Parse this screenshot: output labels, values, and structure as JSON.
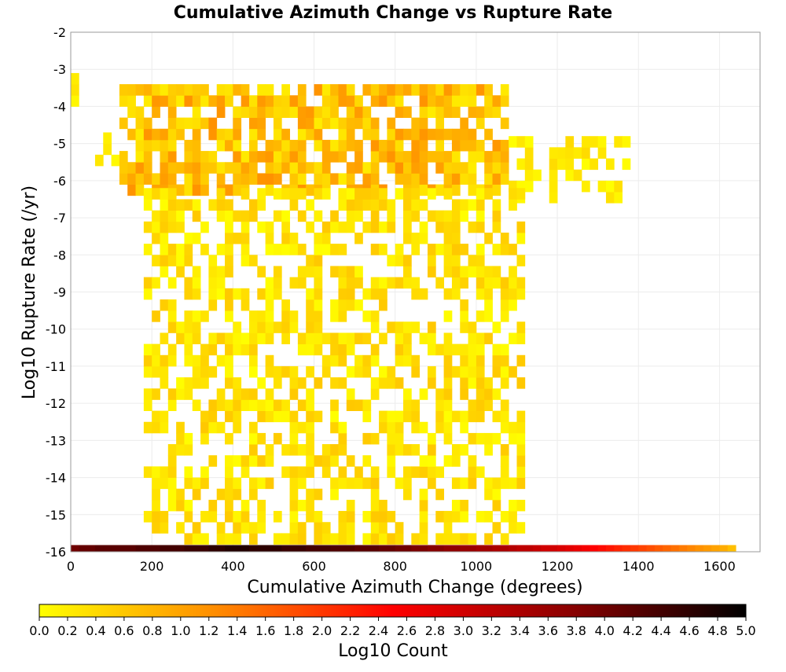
{
  "chart_data": {
    "type": "heatmap",
    "title": "Cumulative Azimuth Change vs Rupture Rate",
    "xlabel": "Cumulative Azimuth Change (degrees)",
    "ylabel": "Log10 Rupture Rate (/yr)",
    "xlim": [
      0,
      1700
    ],
    "ylim": [
      -16,
      -2
    ],
    "x_ticks": [
      "0",
      "200",
      "400",
      "600",
      "800",
      "1000",
      "1200",
      "1400",
      "1600"
    ],
    "y_ticks": [
      "-2",
      "-3",
      "-4",
      "-5",
      "-6",
      "-7",
      "-8",
      "-9",
      "-10",
      "-11",
      "-12",
      "-13",
      "-14",
      "-15",
      "-16"
    ],
    "grid": true,
    "bin_width_x": 20,
    "bin_height_y": 0.3,
    "colorbar": {
      "label": "Log10 Count",
      "min": 0.0,
      "max": 5.0,
      "ticks": [
        "0.0",
        "0.2",
        "0.4",
        "0.6",
        "0.8",
        "1.0",
        "1.2",
        "1.4",
        "1.6",
        "1.8",
        "2.0",
        "2.2",
        "2.4",
        "2.6",
        "2.8",
        "3.0",
        "3.2",
        "3.4",
        "3.6",
        "3.8",
        "4.0",
        "4.2",
        "4.4",
        "4.6",
        "4.8",
        "5.0"
      ],
      "colors": [
        "#ffff00",
        "#ff8c00",
        "#ff0000",
        "#8b0000",
        "#000000"
      ]
    },
    "bottom_row": {
      "y": -16,
      "x_start": 0,
      "x_end": 1640,
      "values": [
        4.0,
        4.1,
        4.1,
        4.2,
        4.2,
        4.2,
        4.2,
        4.2,
        4.3,
        4.3,
        4.3,
        4.4,
        4.4,
        4.4,
        4.5,
        4.5,
        4.5,
        4.6,
        4.6,
        4.7,
        4.7,
        4.7,
        4.6,
        4.6,
        4.6,
        4.6,
        4.5,
        4.5,
        4.5,
        4.4,
        4.4,
        4.4,
        4.3,
        4.3,
        4.3,
        4.2,
        4.2,
        4.2,
        4.1,
        4.1,
        4.0,
        4.0,
        3.9,
        3.9,
        3.8,
        3.8,
        3.7,
        3.7,
        3.6,
        3.6,
        3.5,
        3.5,
        3.4,
        3.4,
        3.3,
        3.2,
        3.2,
        3.1,
        3.0,
        3.0,
        2.9,
        2.8,
        2.7,
        2.6,
        2.5,
        2.4,
        2.3,
        2.2,
        2.1,
        2.0,
        1.9,
        1.8,
        1.7,
        1.6,
        1.5,
        1.4,
        1.3,
        1.2,
        1.1,
        1.0,
        0.9,
        0.7
      ]
    },
    "clusters": [
      {
        "x_range": [
          0,
          20
        ],
        "y_range": [
          -4.0,
          -3.3
        ],
        "value_range": [
          0.0,
          0.3
        ],
        "density": 1.0
      },
      {
        "x_range": [
          60,
          120
        ],
        "y_range": [
          -5.6,
          -4.7
        ],
        "value_range": [
          0.0,
          0.3
        ],
        "density": 0.35
      },
      {
        "x_range": [
          120,
          1080
        ],
        "y_range": [
          -6.4,
          -3.5
        ],
        "value_range": [
          0.2,
          1.2
        ],
        "density": 0.78
      },
      {
        "x_range": [
          1080,
          1380
        ],
        "y_range": [
          -6.6,
          -4.9
        ],
        "value_range": [
          0.0,
          0.4
        ],
        "density": 0.5
      },
      {
        "x_range": [
          180,
          1120
        ],
        "y_range": [
          -15.8,
          -6.4
        ],
        "value_range": [
          0.0,
          0.6
        ],
        "density": 0.55
      }
    ]
  }
}
